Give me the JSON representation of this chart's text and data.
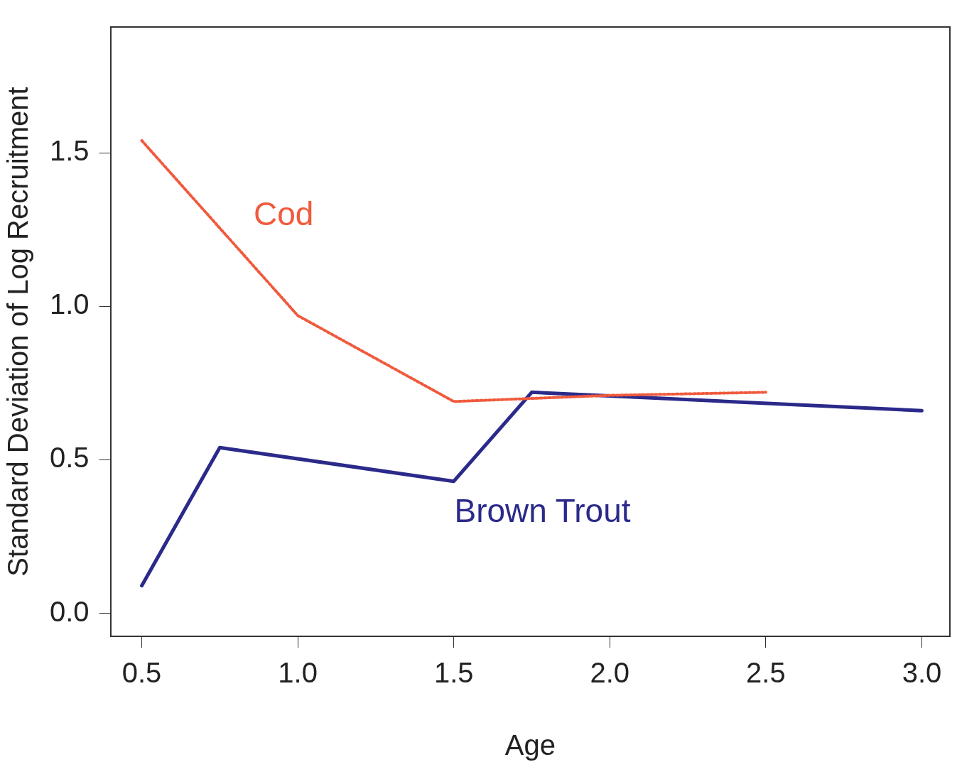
{
  "chart_data": {
    "type": "line",
    "xlabel": "Age",
    "ylabel": "Standard Deviation of Log Recruitment",
    "series": [
      {
        "name": "Cod",
        "color": "#f05a3c",
        "line_style": "dotted",
        "x": [
          0.5,
          1.0,
          1.5,
          2.0,
          2.5
        ],
        "values": [
          1.54,
          0.97,
          0.69,
          0.71,
          0.72
        ]
      },
      {
        "name": "Brown Trout",
        "color": "#2b2a8a",
        "line_style": "solid",
        "x": [
          0.5,
          0.75,
          1.5,
          1.75,
          3.0
        ],
        "values": [
          0.09,
          0.54,
          0.43,
          0.72,
          0.66
        ]
      }
    ],
    "xlim": [
      0.4,
      3.09
    ],
    "ylim": [
      -0.075,
      1.91
    ],
    "xticks": [
      0.5,
      {
        "value": 1.0,
        "label": "1.0"
      },
      1.5,
      {
        "value": 2.0,
        "label": "2.0"
      },
      2.5,
      {
        "value": 3.0,
        "label": "3.0"
      }
    ],
    "yticks": [
      {
        "value": 0.0,
        "label": "0.0"
      },
      0.5,
      {
        "value": 1.0,
        "label": "1.0"
      },
      1.5
    ],
    "grid": false,
    "legend": false,
    "marker": "none"
  }
}
